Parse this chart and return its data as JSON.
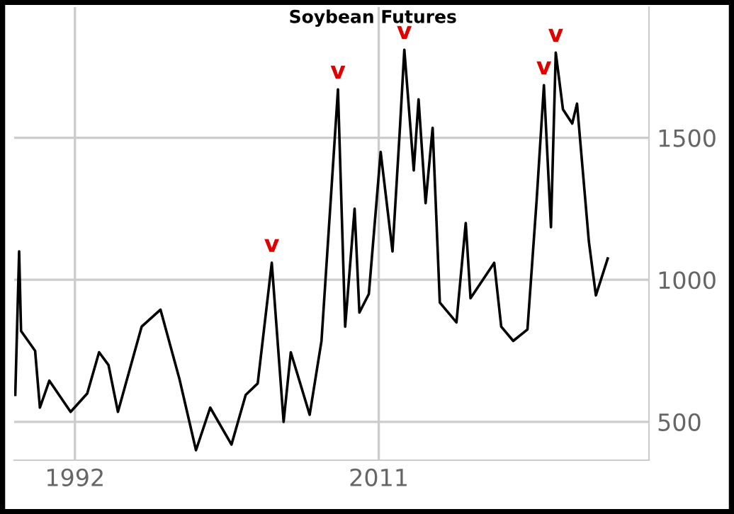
{
  "chart_data": {
    "type": "line",
    "title": "Soybean Futures",
    "x": [
      1988.27,
      1988.51,
      1988.63,
      1989.07,
      1989.51,
      1989.81,
      1990.4,
      1991.73,
      1992.77,
      1993.51,
      1994.1,
      1994.69,
      1996.17,
      1997.35,
      1998.54,
      1999.57,
      2000.46,
      2001.79,
      2002.68,
      2003.43,
      2004.31,
      2005.05,
      2005.5,
      2006.68,
      2007.42,
      2008.45,
      2008.9,
      2009.49,
      2009.79,
      2010.38,
      2011.12,
      2011.86,
      2012.31,
      2012.6,
      2013.19,
      2013.49,
      2013.93,
      2014.37,
      2014.82,
      2015.86,
      2016.44,
      2016.74,
      2018.22,
      2018.66,
      2019.41,
      2020.3,
      2020.88,
      2021.33,
      2021.77,
      2022.07,
      2022.52,
      2023.1,
      2023.4,
      2024.14,
      2024.58,
      2025.32
    ],
    "series": [
      {
        "color": "#000000",
        "values": [
          595,
          1100,
          820,
          785,
          750,
          550,
          645,
          535,
          600,
          745,
          700,
          535,
          835,
          895,
          650,
          400,
          550,
          420,
          595,
          635,
          1060,
          500,
          745,
          525,
          785,
          1670,
          835,
          1250,
          885,
          950,
          1450,
          1100,
          1520,
          1810,
          1385,
          1635,
          1270,
          1535,
          920,
          850,
          1200,
          935,
          1060,
          835,
          785,
          825,
          1285,
          1685,
          1185,
          1800,
          1600,
          1550,
          1620,
          1135,
          945,
          1075
        ]
      }
    ],
    "xlim": [
      1988.2,
      2027.9
    ],
    "ylim": [
      365,
      1960
    ],
    "xticks": [
      1992,
      2011
    ],
    "yticks": [
      500,
      1000,
      1500
    ],
    "grid": true,
    "marker": "none",
    "line_style": "solid",
    "annotations": [
      {
        "text": "v",
        "x": 2004.31,
        "y": 1060
      },
      {
        "text": "v",
        "x": 2008.45,
        "y": 1670
      },
      {
        "text": "v",
        "x": 2012.6,
        "y": 1810
      },
      {
        "text": "v",
        "x": 2021.33,
        "y": 1685
      },
      {
        "text": "v",
        "x": 2022.07,
        "y": 1800
      }
    ]
  }
}
